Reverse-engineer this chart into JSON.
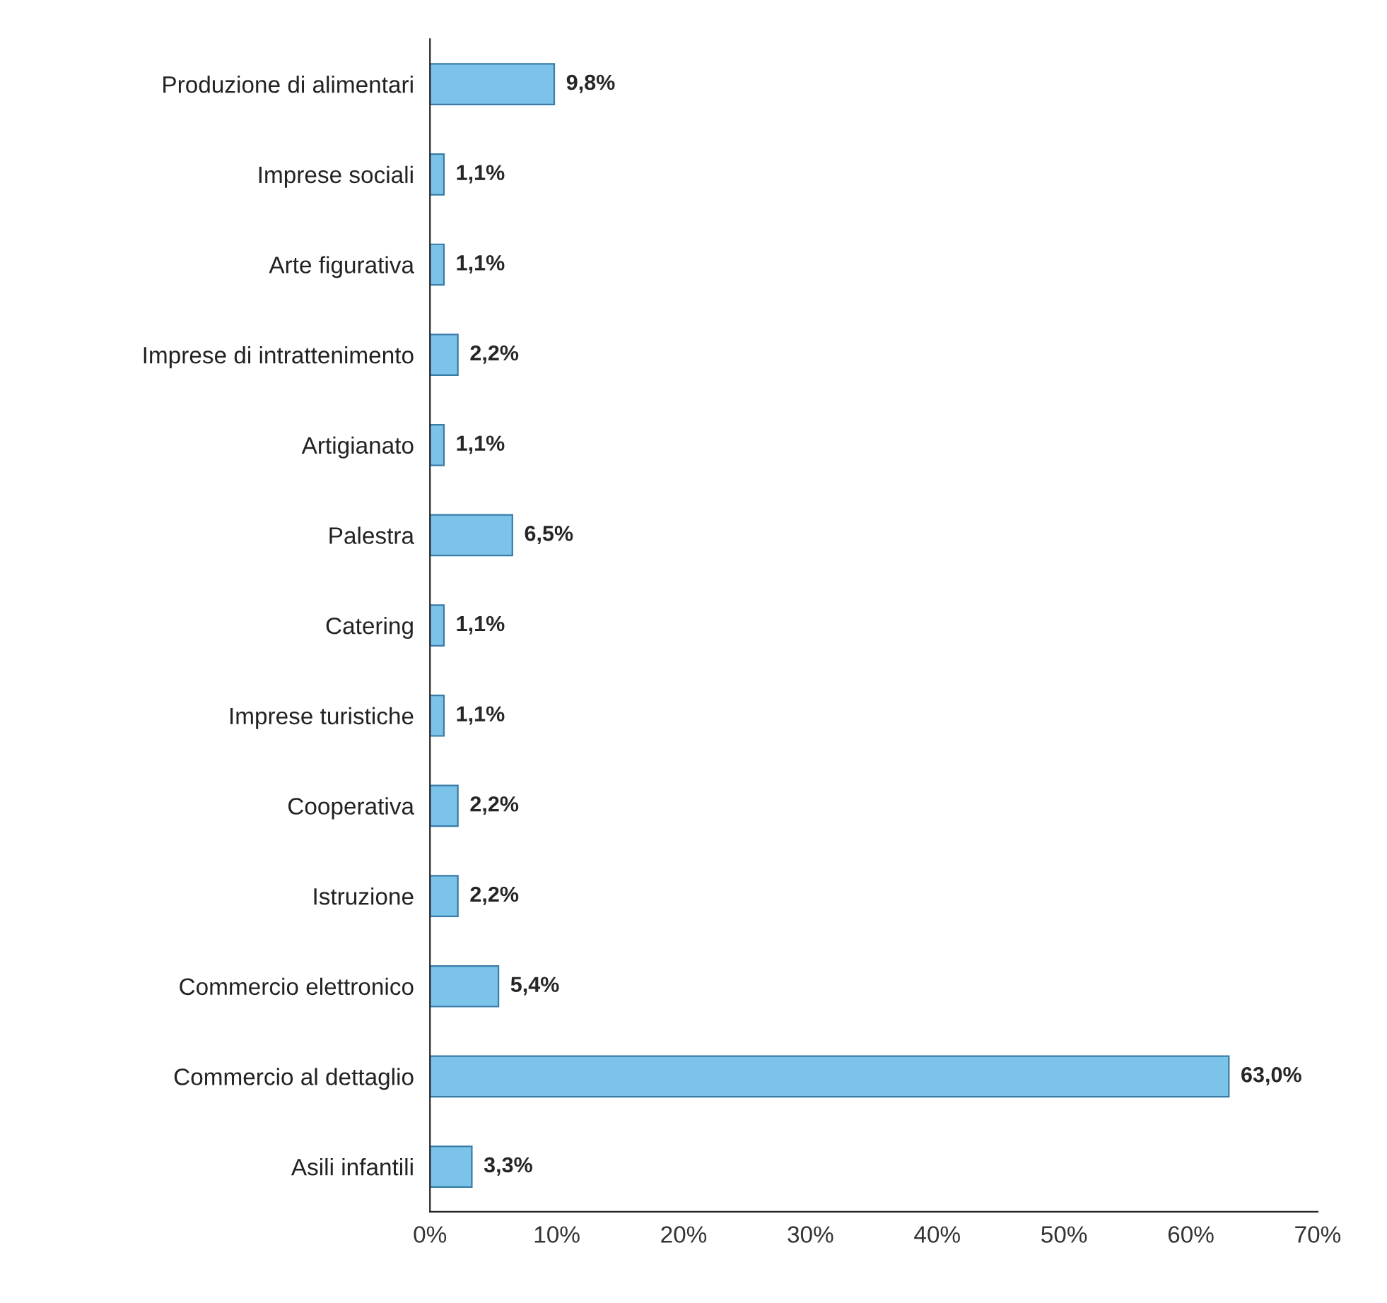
{
  "chart_data": {
    "type": "bar",
    "orientation": "horizontal",
    "categories": [
      "Produzione di alimentari",
      "Imprese sociali",
      "Arte figurativa",
      "Imprese di intrattenimento",
      "Artigianato",
      "Palestra",
      "Catering",
      "Imprese turistiche",
      "Cooperativa",
      "Istruzione",
      "Commercio elettronico",
      "Commercio al dettaglio",
      "Asili infantili"
    ],
    "values": [
      9.8,
      1.1,
      1.1,
      2.2,
      1.1,
      6.5,
      1.1,
      1.1,
      2.2,
      2.2,
      5.4,
      63.0,
      3.3
    ],
    "value_labels": [
      "9,8%",
      "1,1%",
      "1,1%",
      "2,2%",
      "1,1%",
      "6,5%",
      "1,1%",
      "1,1%",
      "2,2%",
      "2,2%",
      "5,4%",
      "63,0%",
      "3,3%"
    ],
    "color": "#7cc3ea",
    "xlim": [
      0,
      70
    ],
    "xticks": [
      {
        "value": 0,
        "label": "0%"
      },
      {
        "value": 10,
        "label": "10%"
      },
      {
        "value": 20,
        "label": "20%"
      },
      {
        "value": 30,
        "label": "30%"
      },
      {
        "value": 40,
        "label": "40%"
      },
      {
        "value": 50,
        "label": "50%"
      },
      {
        "value": 60,
        "label": "60%"
      },
      {
        "value": 70,
        "label": "70%"
      }
    ]
  }
}
